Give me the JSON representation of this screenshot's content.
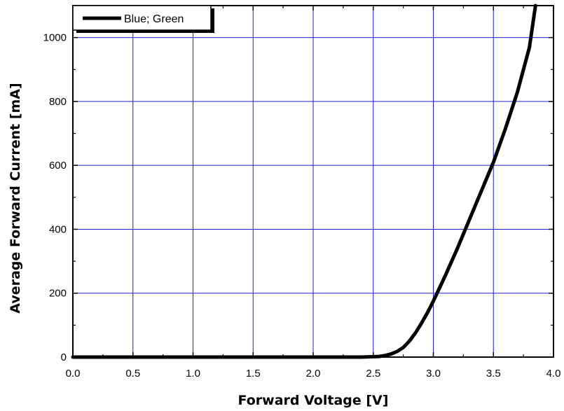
{
  "chart_data": {
    "type": "line",
    "title": "",
    "xlabel": "Forward Voltage [V]",
    "ylabel": "Average Forward Current [mA]",
    "xlim": [
      0.0,
      4.0
    ],
    "ylim": [
      0,
      1100
    ],
    "xticks": [
      0.0,
      0.5,
      1.0,
      1.5,
      2.0,
      2.5,
      3.0,
      3.5,
      4.0
    ],
    "xtick_labels": [
      "0.0",
      "0.5",
      "1.0",
      "1.5",
      "2.0",
      "2.5",
      "3.0",
      "3.5",
      "4.0"
    ],
    "yticks": [
      0,
      200,
      400,
      600,
      800,
      1000
    ],
    "ytick_labels": [
      "0",
      "200",
      "400",
      "600",
      "800",
      "1000"
    ],
    "grid": true,
    "grid_color": "#1f1fd0",
    "legend_position": "top-left",
    "series": [
      {
        "name": "Blue; Green",
        "color": "#000000",
        "x": [
          0.0,
          0.5,
          1.0,
          1.5,
          2.0,
          2.4,
          2.55,
          2.6,
          2.65,
          2.7,
          2.75,
          2.8,
          2.85,
          2.9,
          2.95,
          3.0,
          3.1,
          3.2,
          3.3,
          3.4,
          3.5,
          3.6,
          3.7,
          3.8,
          3.85
        ],
        "y": [
          0,
          0,
          0,
          0,
          0,
          0,
          2,
          5,
          10,
          18,
          30,
          50,
          75,
          105,
          138,
          175,
          255,
          340,
          430,
          520,
          610,
          715,
          830,
          970,
          1100
        ]
      }
    ]
  }
}
